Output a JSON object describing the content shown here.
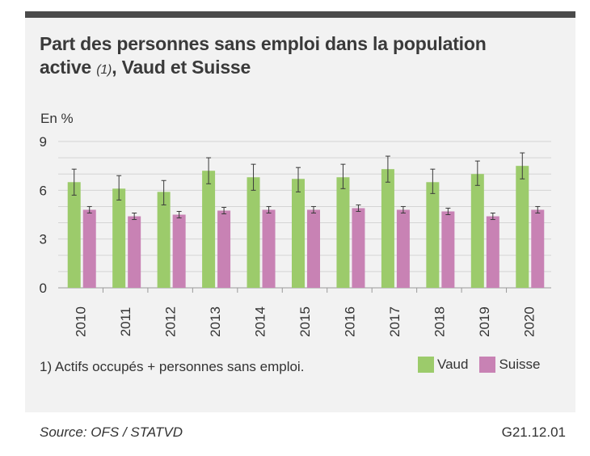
{
  "title_main": "Part des personnes sans emploi dans la population",
  "title_line2_a": "active ",
  "title_footnote_ref": "(1)",
  "title_line2_b": ", Vaud et Suisse",
  "unit_label": "En %",
  "footnote": "1) Actifs occupés + personnes sans emploi.",
  "source": "Source: OFS / STATVD",
  "code": "G21.12.01",
  "legend": [
    {
      "label": "Vaud",
      "color": "#9ccb6b"
    },
    {
      "label": "Suisse",
      "color": "#c882b4"
    }
  ],
  "chart_data": {
    "type": "bar",
    "categories": [
      "2010",
      "2011",
      "2012",
      "2013",
      "2014",
      "2015",
      "2016",
      "2017",
      "2018",
      "2019",
      "2020"
    ],
    "series": [
      {
        "name": "Vaud",
        "color": "#9ccb6b",
        "values": [
          6.5,
          6.1,
          5.9,
          7.2,
          6.8,
          6.7,
          6.8,
          7.3,
          6.5,
          7.0,
          7.5
        ],
        "error_low": [
          5.7,
          5.4,
          5.1,
          6.4,
          6.0,
          5.9,
          6.1,
          6.5,
          5.8,
          6.3,
          6.7
        ],
        "error_high": [
          7.3,
          6.9,
          6.6,
          8.0,
          7.6,
          7.4,
          7.6,
          8.1,
          7.3,
          7.8,
          8.3
        ]
      },
      {
        "name": "Suisse",
        "color": "#c882b4",
        "values": [
          4.8,
          4.4,
          4.5,
          4.75,
          4.8,
          4.8,
          4.9,
          4.8,
          4.7,
          4.4,
          4.8
        ],
        "error_low": [
          4.6,
          4.2,
          4.3,
          4.55,
          4.6,
          4.6,
          4.7,
          4.6,
          4.5,
          4.2,
          4.6
        ],
        "error_high": [
          5.0,
          4.6,
          4.7,
          4.95,
          5.0,
          5.0,
          5.1,
          5.0,
          4.9,
          4.6,
          5.0
        ]
      }
    ],
    "ylim": [
      0,
      9
    ],
    "yticks": [
      "0",
      "3",
      "6",
      "9"
    ],
    "ylabel": "En %",
    "grid": true,
    "legend_position": "bottom-right"
  }
}
